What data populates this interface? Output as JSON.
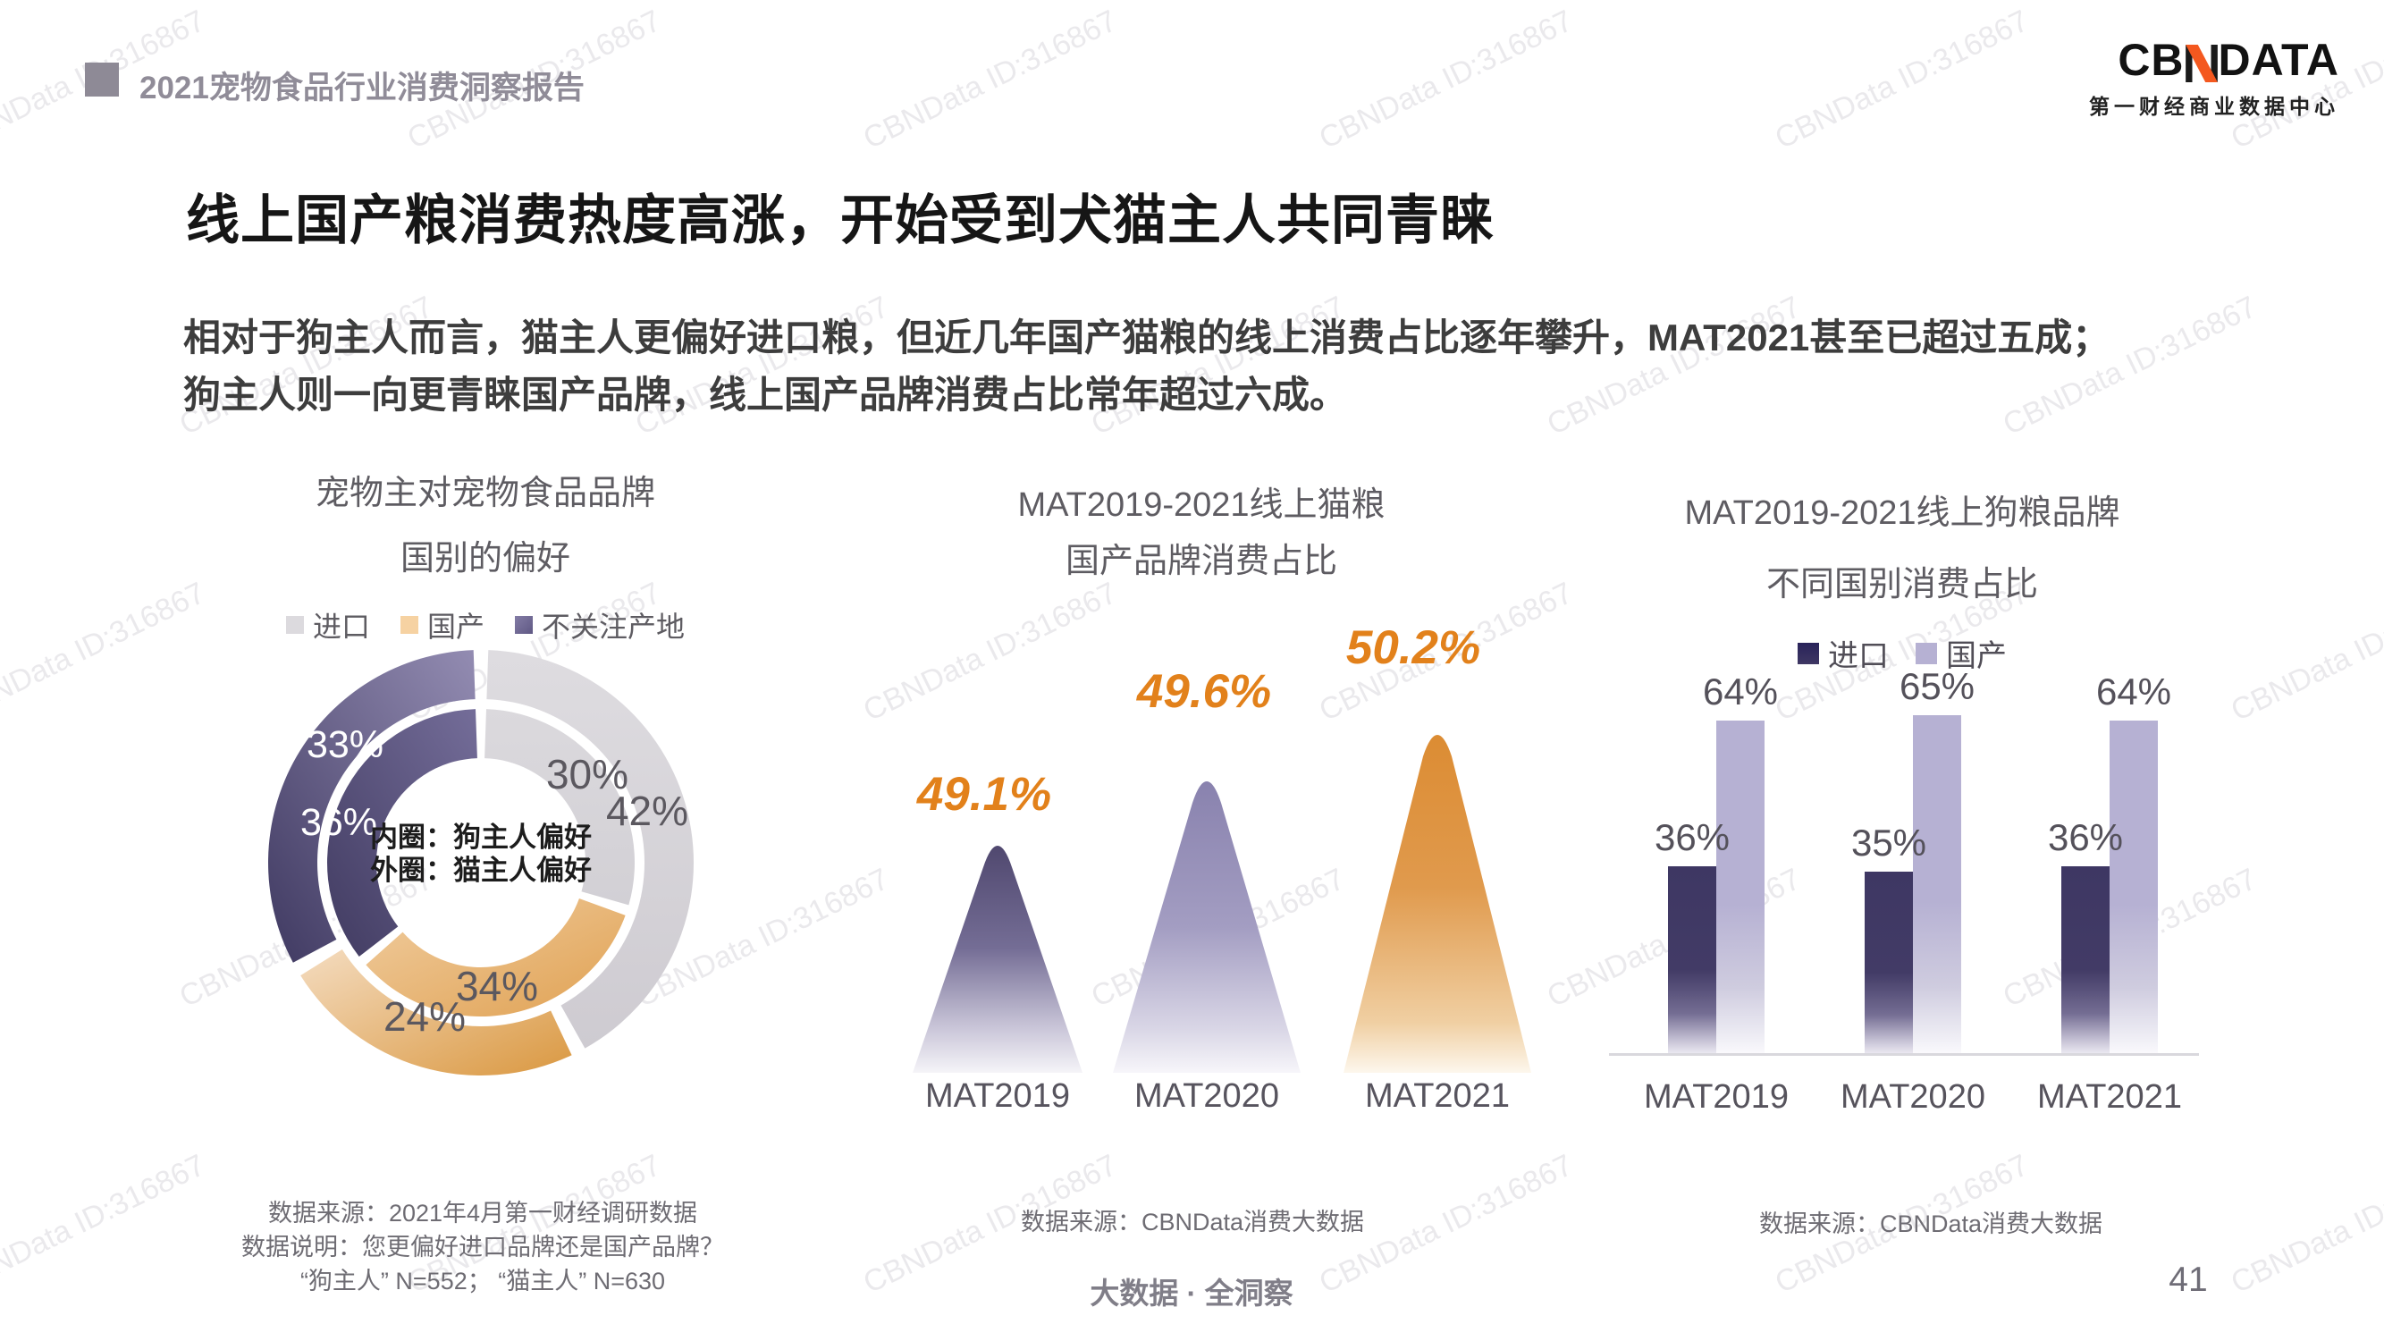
{
  "header": {
    "report_title": "2021宠物食品行业消费洞察报告",
    "logo": {
      "brand_prefix": "CB",
      "brand_suffix": "DATA",
      "subtitle": "第一财经商业数据中心",
      "accent_color": "#f4581f"
    }
  },
  "slide": {
    "title": "线上国产粮消费热度高涨，开始受到犬猫主人共同青睐",
    "body_lines": [
      "相对于狗主人而言，猫主人更偏好进口粮，但近几年国产猫粮的线上消费占比逐年攀升，MAT2021甚至已超过五成；",
      "狗主人则一向更青睐国产品牌，线上国产品牌消费占比常年超过六成。"
    ]
  },
  "watermark": {
    "text": "CBNData ID:316867"
  },
  "bottom": {
    "tagline": "大数据 · 全洞察",
    "page_number": "41"
  },
  "chart_data": [
    {
      "type": "pie",
      "subtype": "double-donut",
      "title_lines": [
        "宠物主对宠物食品品牌",
        "国别的偏好"
      ],
      "categories": [
        "进口",
        "国产",
        "不关注产地"
      ],
      "legend_colors": [
        "#dcdade",
        "#f6d2a2",
        "#5f5884"
      ],
      "rings": [
        {
          "name": "外圈：猫主人偏好",
          "position": "outer",
          "values": [
            42,
            24,
            33
          ]
        },
        {
          "name": "内圈：狗主人偏好",
          "position": "inner",
          "values": [
            30,
            34,
            36
          ]
        }
      ],
      "center_note_lines": [
        "内圈：狗主人偏好",
        "外圈：猫主人偏好"
      ],
      "source_lines": [
        "数据来源：2021年4月第一财经调研数据",
        "数据说明：您更偏好进口品牌还是国产品牌？",
        "“狗主人” N=552； “猫主人” N=630"
      ]
    },
    {
      "type": "area",
      "subtype": "peaks",
      "title_lines": [
        "MAT2019-2021线上猫粮",
        "国产品牌消费占比"
      ],
      "categories": [
        "MAT2019",
        "MAT2020",
        "MAT2021"
      ],
      "values": [
        49.1,
        49.6,
        50.2
      ],
      "unit": "%",
      "colors": [
        "#50486f",
        "#8982ae",
        "#dc8c33"
      ],
      "value_label_color": "#e2811b",
      "source": "数据来源：CBNData消费大数据"
    },
    {
      "type": "bar",
      "title_lines": [
        "MAT2019-2021线上狗粮品牌",
        "不同国别消费占比"
      ],
      "categories": [
        "MAT2019",
        "MAT2020",
        "MAT2021"
      ],
      "series": [
        {
          "name": "进口",
          "color": "#3e3763",
          "values": [
            36,
            35,
            36
          ]
        },
        {
          "name": "国产",
          "color": "#b6b1d3",
          "values": [
            64,
            65,
            64
          ]
        }
      ],
      "unit": "%",
      "ylim": [
        0,
        73
      ],
      "source": "数据来源：CBNData消费大数据"
    }
  ]
}
